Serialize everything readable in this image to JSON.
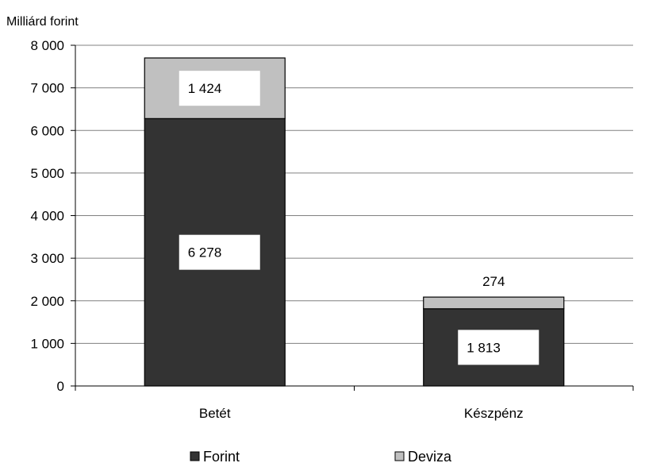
{
  "chart_data": {
    "type": "bar",
    "stacked": true,
    "title": "",
    "ylabel": "Milliárd forint",
    "xlabel": "",
    "categories": [
      "Betét",
      "Készpénz"
    ],
    "series": [
      {
        "name": "Forint",
        "values": [
          6278,
          1813
        ],
        "labels": [
          "6 278",
          "1 813"
        ],
        "color": "#333333"
      },
      {
        "name": "Deviza",
        "values": [
          1424,
          274
        ],
        "labels": [
          "1 424",
          "274"
        ],
        "color": "#c0c0c0"
      }
    ],
    "ylim": [
      0,
      8000
    ],
    "yticks": [
      0,
      1000,
      2000,
      3000,
      4000,
      5000,
      6000,
      7000,
      8000
    ],
    "ytick_labels": [
      "0",
      "1 000",
      "2 000",
      "3 000",
      "4 000",
      "5 000",
      "6 000",
      "7 000",
      "8 000"
    ],
    "grid": true,
    "legend_position": "bottom"
  }
}
